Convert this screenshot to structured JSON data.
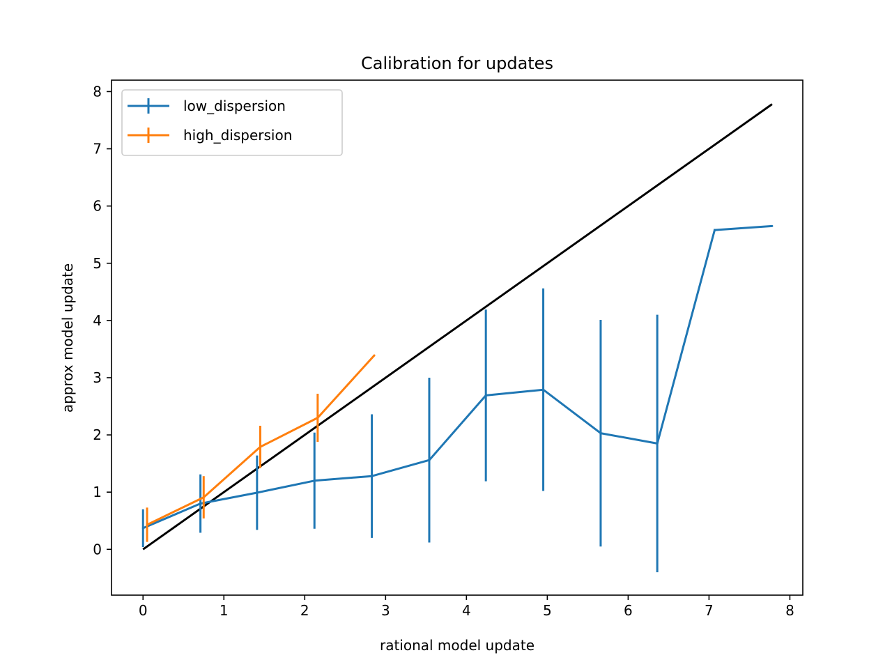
{
  "chart_data": {
    "type": "line",
    "title": "Calibration for updates",
    "xlabel": "rational model update",
    "ylabel": "approx model update",
    "xlim": [
      -0.39,
      8.16
    ],
    "ylim": [
      -0.8,
      8.2
    ],
    "x_ticks": [
      0,
      1,
      2,
      3,
      4,
      5,
      6,
      7,
      8
    ],
    "y_ticks": [
      0,
      1,
      2,
      3,
      4,
      5,
      6,
      7,
      8
    ],
    "grid": false,
    "legend_position": "top-left",
    "reference_line": {
      "color": "#000000",
      "x": [
        0,
        7.78
      ],
      "y": [
        0,
        7.78
      ]
    },
    "series": [
      {
        "name": "low_dispersion",
        "color": "#1f77b4",
        "x": [
          0.0,
          0.71,
          1.41,
          2.12,
          2.83,
          3.54,
          4.24,
          4.95,
          5.66,
          6.36,
          7.07,
          7.78
        ],
        "y": [
          0.37,
          0.8,
          0.99,
          1.2,
          1.28,
          1.56,
          2.69,
          2.79,
          2.03,
          1.85,
          5.58,
          5.65
        ],
        "err": [
          0.33,
          0.51,
          0.65,
          0.84,
          1.08,
          1.44,
          1.5,
          1.77,
          1.98,
          2.25,
          0.02,
          0.0
        ]
      },
      {
        "name": "high_dispersion",
        "color": "#ff7f0e",
        "x": [
          0.05,
          0.75,
          1.45,
          2.16,
          2.86
        ],
        "y": [
          0.43,
          0.91,
          1.79,
          2.3,
          3.39
        ],
        "err": [
          0.3,
          0.37,
          0.37,
          0.42,
          0.0
        ]
      }
    ]
  }
}
